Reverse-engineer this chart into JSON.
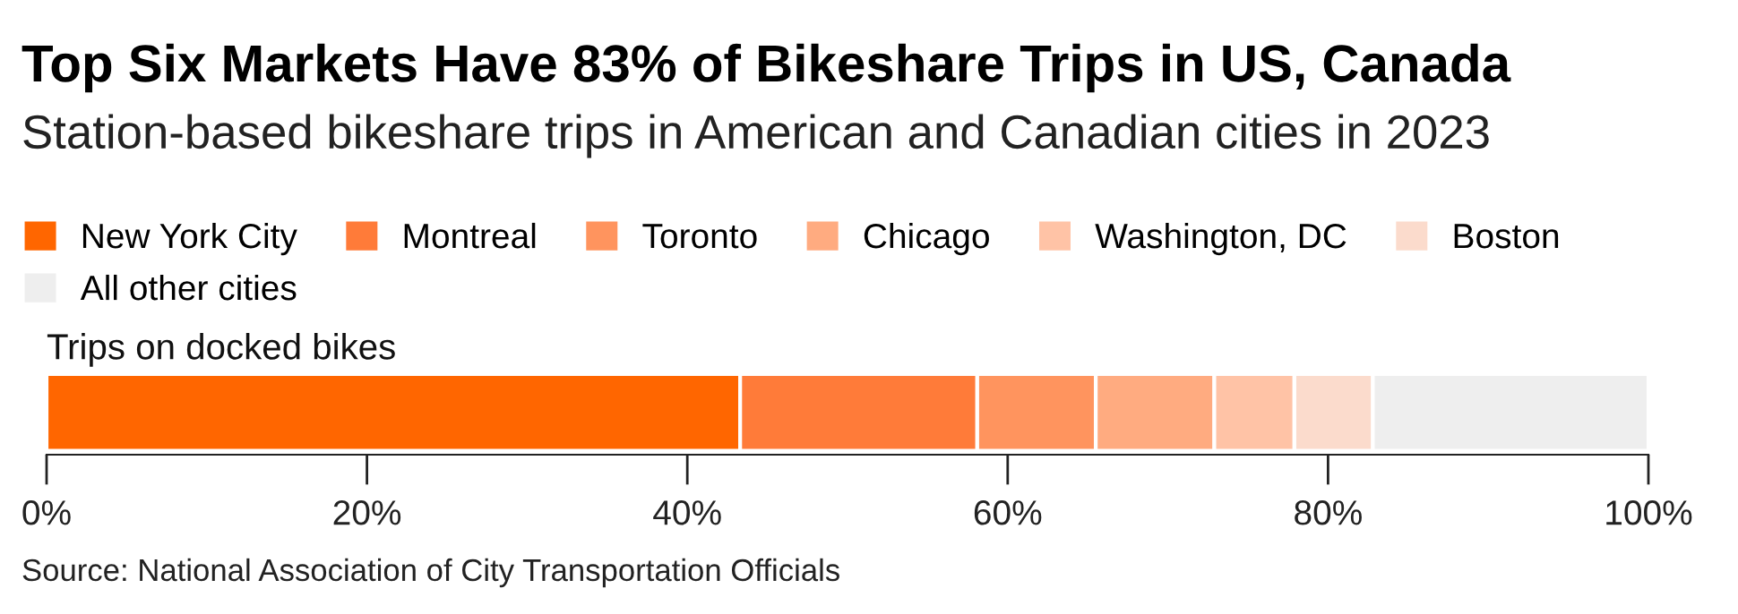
{
  "chart_data": {
    "type": "bar",
    "orientation": "horizontal",
    "stacked": true,
    "title": "Top Six Markets Have 83% of Bikeshare Trips in US, Canada",
    "subtitle": "Station-based bikeshare trips in American and Canadian cities in 2023",
    "categories": [
      "Trips on docked bikes"
    ],
    "series": [
      {
        "name": "New York City",
        "color": "#ff6600",
        "values": [
          43.3
        ]
      },
      {
        "name": "Montreal",
        "color": "#ff7b39",
        "values": [
          14.8
        ]
      },
      {
        "name": "Toronto",
        "color": "#ff945e",
        "values": [
          7.4
        ]
      },
      {
        "name": "Chicago",
        "color": "#ffab80",
        "values": [
          7.4
        ]
      },
      {
        "name": "Washington, DC",
        "color": "#ffc3a6",
        "values": [
          5.0
        ]
      },
      {
        "name": "Boston",
        "color": "#fbdbcc",
        "values": [
          4.9
        ]
      },
      {
        "name": "All other cities",
        "color": "#eeeeee",
        "values": [
          17.2
        ]
      }
    ],
    "xlim": [
      0,
      100
    ],
    "xticks": [
      {
        "value": 0,
        "label": "0%"
      },
      {
        "value": 20,
        "label": "20%"
      },
      {
        "value": 40,
        "label": "40%"
      },
      {
        "value": 60,
        "label": "60%"
      },
      {
        "value": 80,
        "label": "80%"
      },
      {
        "value": 100,
        "label": "100%"
      }
    ],
    "grid": false,
    "legend": "top left",
    "annotations": [
      "Source: National Association of City Transportation Officials"
    ]
  }
}
